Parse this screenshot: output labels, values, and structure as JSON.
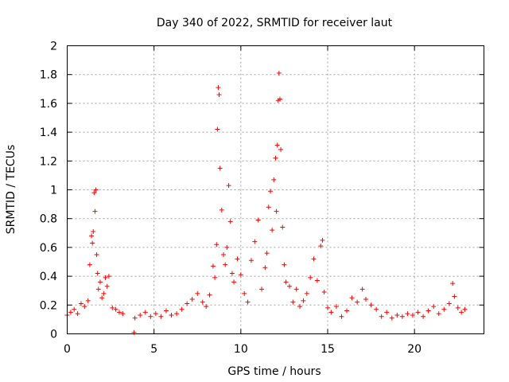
{
  "chart_data": {
    "type": "scatter",
    "title": "Day 340 of 2022, SRMTID for receiver laut",
    "xlabel": "GPS time / hours",
    "ylabel": "SRMTID / TECUs",
    "xlim": [
      0,
      24
    ],
    "ylim": [
      0,
      2
    ],
    "x_ticks": [
      0,
      5,
      10,
      15,
      20
    ],
    "x_tick_labels": [
      "0",
      "5",
      "10",
      "15",
      "20"
    ],
    "y_ticks": [
      0,
      0.2,
      0.4,
      0.6,
      0.8,
      1,
      1.2,
      1.4,
      1.6,
      1.8,
      2
    ],
    "y_tick_labels": [
      "0",
      "0.2",
      "0.4",
      "0.6",
      "0.8",
      "1",
      "1.2",
      "1.4",
      "1.6",
      "1.8",
      "2"
    ],
    "grid": true,
    "marker": "+",
    "series": [
      {
        "name": "SRMTID",
        "color": "#ff0000",
        "x": [
          0.0,
          0.2,
          0.4,
          0.6,
          0.8,
          1.0,
          1.2,
          1.3,
          1.4,
          1.45,
          1.5,
          1.55,
          1.6,
          1.65,
          1.7,
          1.75,
          1.8,
          1.9,
          2.0,
          2.1,
          2.2,
          2.3,
          2.4,
          2.6,
          2.8,
          3.0,
          3.2,
          3.85,
          3.9,
          4.2,
          4.5,
          4.8,
          5.1,
          5.4,
          5.7,
          6.0,
          6.3,
          6.6,
          6.9,
          7.2,
          7.5,
          7.8,
          8.0,
          8.2,
          8.4,
          8.5,
          8.6,
          8.65,
          8.7,
          8.75,
          8.8,
          8.9,
          9.0,
          9.1,
          9.2,
          9.3,
          9.4,
          9.5,
          9.6,
          9.8,
          10.0,
          10.2,
          10.4,
          10.6,
          10.8,
          11.0,
          11.2,
          11.4,
          11.5,
          11.6,
          11.7,
          11.8,
          11.9,
          12.0,
          12.05,
          12.1,
          12.15,
          12.2,
          12.25,
          12.3,
          12.4,
          12.5,
          12.6,
          12.8,
          13.0,
          13.2,
          13.4,
          13.6,
          13.8,
          14.0,
          14.2,
          14.4,
          14.6,
          14.7,
          14.8,
          15.0,
          15.2,
          15.5,
          15.8,
          16.1,
          16.4,
          16.7,
          17.0,
          17.2,
          17.5,
          17.8,
          18.1,
          18.4,
          18.7,
          19.0,
          19.3,
          19.6,
          19.9,
          20.2,
          20.5,
          20.8,
          21.1,
          21.4,
          21.7,
          22.0,
          22.2,
          22.3,
          22.5,
          22.7,
          22.9
        ],
        "y": [
          0.13,
          0.15,
          0.17,
          0.14,
          0.21,
          0.19,
          0.23,
          0.48,
          0.68,
          0.63,
          0.71,
          0.98,
          0.85,
          1.0,
          0.55,
          0.42,
          0.31,
          0.36,
          0.25,
          0.28,
          0.39,
          0.33,
          0.4,
          0.18,
          0.17,
          0.15,
          0.14,
          0.01,
          0.11,
          0.13,
          0.15,
          0.12,
          0.14,
          0.12,
          0.16,
          0.13,
          0.14,
          0.17,
          0.21,
          0.24,
          0.28,
          0.22,
          0.19,
          0.27,
          0.47,
          0.39,
          0.62,
          1.42,
          1.71,
          1.66,
          1.15,
          0.86,
          0.55,
          0.48,
          0.6,
          1.03,
          0.78,
          0.42,
          0.36,
          0.52,
          0.41,
          0.28,
          0.22,
          0.51,
          0.64,
          0.79,
          0.31,
          0.46,
          0.56,
          0.88,
          0.99,
          0.72,
          1.07,
          1.22,
          0.85,
          1.31,
          1.62,
          1.81,
          1.63,
          1.28,
          0.74,
          0.48,
          0.36,
          0.33,
          0.22,
          0.31,
          0.19,
          0.23,
          0.28,
          0.39,
          0.52,
          0.37,
          0.61,
          0.65,
          0.29,
          0.18,
          0.15,
          0.19,
          0.12,
          0.16,
          0.25,
          0.22,
          0.31,
          0.24,
          0.2,
          0.17,
          0.12,
          0.15,
          0.11,
          0.13,
          0.12,
          0.14,
          0.13,
          0.15,
          0.12,
          0.16,
          0.19,
          0.14,
          0.17,
          0.21,
          0.35,
          0.26,
          0.18,
          0.15,
          0.17
        ]
      }
    ]
  }
}
